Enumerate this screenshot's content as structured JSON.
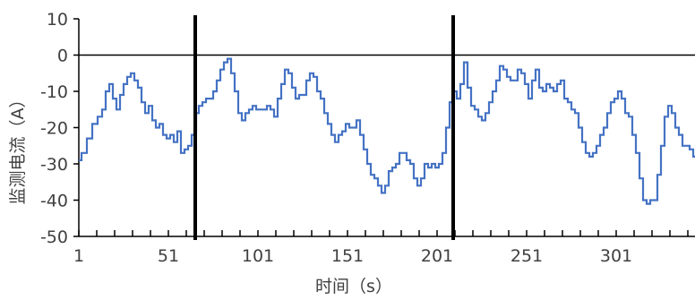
{
  "chart_data": {
    "type": "line",
    "title": "",
    "xlabel": "时间（s）",
    "ylabel": "监测电流（A）",
    "xlim": [
      1,
      345
    ],
    "ylim": [
      -50,
      10
    ],
    "x_ticks": [
      1,
      51,
      101,
      151,
      201,
      251,
      301
    ],
    "x_tick_labels": [
      "1",
      "51",
      "101",
      "151",
      "201",
      "251",
      "301"
    ],
    "y_ticks": [
      10,
      0,
      -10,
      -20,
      -30,
      -40,
      -50
    ],
    "y_tick_labels": [
      "10",
      "0",
      "-10",
      "-20",
      "-30",
      "-40",
      "-50"
    ],
    "grid": false,
    "zero_line": true,
    "vertical_markers_x": [
      66,
      210
    ],
    "series_color": "#4472C4",
    "marker_color": "#000000",
    "series": [
      {
        "values": [
          [
            1,
            -29
          ],
          [
            4,
            -27
          ],
          [
            7,
            -23
          ],
          [
            10,
            -19
          ],
          [
            13,
            -17
          ],
          [
            15,
            -15
          ],
          [
            17,
            -10
          ],
          [
            19,
            -8
          ],
          [
            21,
            -12
          ],
          [
            23,
            -15
          ],
          [
            25,
            -11
          ],
          [
            27,
            -8
          ],
          [
            29,
            -6
          ],
          [
            31,
            -5
          ],
          [
            33,
            -7
          ],
          [
            35,
            -9
          ],
          [
            37,
            -13
          ],
          [
            39,
            -16
          ],
          [
            41,
            -14
          ],
          [
            43,
            -18
          ],
          [
            45,
            -20
          ],
          [
            47,
            -19
          ],
          [
            49,
            -22
          ],
          [
            51,
            -23
          ],
          [
            53,
            -22
          ],
          [
            55,
            -24
          ],
          [
            57,
            -21
          ],
          [
            59,
            -27
          ],
          [
            61,
            -26
          ],
          [
            63,
            -25
          ],
          [
            65,
            -22
          ],
          [
            66,
            -21
          ],
          [
            67,
            -16
          ],
          [
            69,
            -14
          ],
          [
            71,
            -13
          ],
          [
            73,
            -12
          ],
          [
            75,
            -12
          ],
          [
            77,
            -10
          ],
          [
            79,
            -7
          ],
          [
            81,
            -4
          ],
          [
            83,
            -2
          ],
          [
            85,
            -1
          ],
          [
            87,
            -5
          ],
          [
            89,
            -10
          ],
          [
            91,
            -16
          ],
          [
            93,
            -18
          ],
          [
            95,
            -16
          ],
          [
            97,
            -15
          ],
          [
            99,
            -14
          ],
          [
            101,
            -15
          ],
          [
            103,
            -15
          ],
          [
            105,
            -15
          ],
          [
            107,
            -14
          ],
          [
            109,
            -15
          ],
          [
            111,
            -17
          ],
          [
            113,
            -12
          ],
          [
            115,
            -8
          ],
          [
            117,
            -4
          ],
          [
            119,
            -5
          ],
          [
            121,
            -9
          ],
          [
            123,
            -12
          ],
          [
            125,
            -11
          ],
          [
            127,
            -11
          ],
          [
            129,
            -7
          ],
          [
            131,
            -5
          ],
          [
            133,
            -6
          ],
          [
            135,
            -10
          ],
          [
            137,
            -12
          ],
          [
            139,
            -16
          ],
          [
            141,
            -19
          ],
          [
            143,
            -22
          ],
          [
            145,
            -24
          ],
          [
            147,
            -22
          ],
          [
            149,
            -21
          ],
          [
            151,
            -19
          ],
          [
            153,
            -20
          ],
          [
            155,
            -20
          ],
          [
            157,
            -18
          ],
          [
            159,
            -22
          ],
          [
            161,
            -26
          ],
          [
            163,
            -30
          ],
          [
            165,
            -33
          ],
          [
            167,
            -34
          ],
          [
            169,
            -36
          ],
          [
            171,
            -38
          ],
          [
            173,
            -36
          ],
          [
            175,
            -32
          ],
          [
            177,
            -31
          ],
          [
            179,
            -30
          ],
          [
            181,
            -27
          ],
          [
            183,
            -27
          ],
          [
            185,
            -29
          ],
          [
            187,
            -30
          ],
          [
            189,
            -34
          ],
          [
            191,
            -36
          ],
          [
            193,
            -34
          ],
          [
            195,
            -30
          ],
          [
            197,
            -31
          ],
          [
            199,
            -30
          ],
          [
            201,
            -31
          ],
          [
            203,
            -30
          ],
          [
            205,
            -27
          ],
          [
            207,
            -20
          ],
          [
            209,
            -13
          ],
          [
            210,
            -12
          ],
          [
            211,
            -10
          ],
          [
            213,
            -12
          ],
          [
            215,
            -8
          ],
          [
            217,
            -2
          ],
          [
            219,
            -9
          ],
          [
            221,
            -14
          ],
          [
            223,
            -15
          ],
          [
            225,
            -17
          ],
          [
            227,
            -18
          ],
          [
            229,
            -16
          ],
          [
            231,
            -13
          ],
          [
            233,
            -10
          ],
          [
            235,
            -7
          ],
          [
            237,
            -3
          ],
          [
            239,
            -4
          ],
          [
            241,
            -6
          ],
          [
            243,
            -7
          ],
          [
            245,
            -7
          ],
          [
            247,
            -4
          ],
          [
            249,
            -5
          ],
          [
            251,
            -8
          ],
          [
            253,
            -12
          ],
          [
            255,
            -7
          ],
          [
            257,
            -4
          ],
          [
            259,
            -9
          ],
          [
            261,
            -10
          ],
          [
            263,
            -8
          ],
          [
            265,
            -9
          ],
          [
            267,
            -10
          ],
          [
            269,
            -8
          ],
          [
            271,
            -7
          ],
          [
            273,
            -12
          ],
          [
            275,
            -13
          ],
          [
            277,
            -15
          ],
          [
            279,
            -16
          ],
          [
            281,
            -20
          ],
          [
            283,
            -24
          ],
          [
            285,
            -27
          ],
          [
            287,
            -28
          ],
          [
            289,
            -27
          ],
          [
            291,
            -25
          ],
          [
            293,
            -22
          ],
          [
            295,
            -20
          ],
          [
            297,
            -16
          ],
          [
            299,
            -13
          ],
          [
            301,
            -12
          ],
          [
            303,
            -10
          ],
          [
            305,
            -12
          ],
          [
            307,
            -16
          ],
          [
            309,
            -17
          ],
          [
            311,
            -22
          ],
          [
            313,
            -27
          ],
          [
            315,
            -34
          ],
          [
            317,
            -40
          ],
          [
            319,
            -41
          ],
          [
            321,
            -40
          ],
          [
            323,
            -40
          ],
          [
            325,
            -33
          ],
          [
            327,
            -25
          ],
          [
            329,
            -17
          ],
          [
            331,
            -14
          ],
          [
            333,
            -16
          ],
          [
            335,
            -20
          ],
          [
            337,
            -22
          ],
          [
            339,
            -25
          ],
          [
            341,
            -25
          ],
          [
            343,
            -26
          ],
          [
            345,
            -28
          ]
        ]
      }
    ]
  }
}
